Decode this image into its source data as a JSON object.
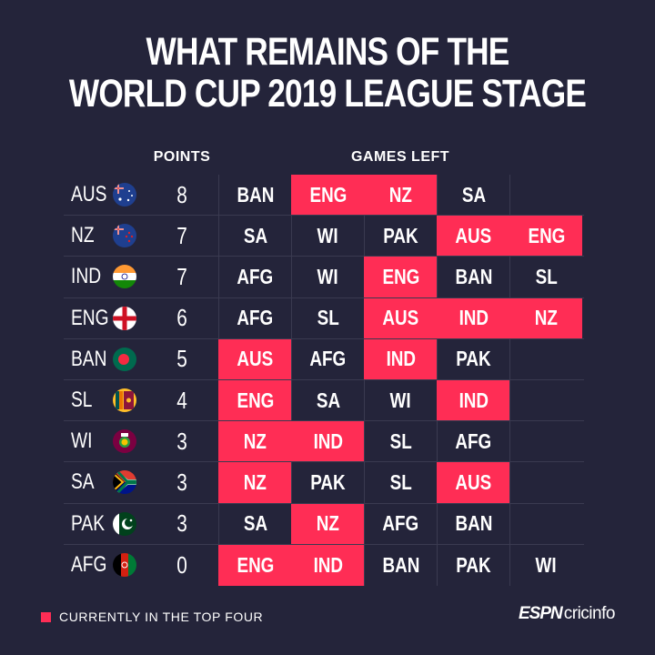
{
  "title": {
    "line1": "WHAT REMAINS OF THE",
    "line2": "WORLD CUP 2019 LEAGUE STAGE"
  },
  "headers": {
    "points": "POINTS",
    "games_left": "GAMES LEFT"
  },
  "colors": {
    "background": "#24243a",
    "highlight": "#ff2d55",
    "text": "#ffffff"
  },
  "teams": [
    {
      "team": "AUS",
      "flag": "australia-flag-icon",
      "points": "8",
      "games": [
        {
          "opp": "BAN",
          "top4": false
        },
        {
          "opp": "ENG",
          "top4": true
        },
        {
          "opp": "NZ",
          "top4": true
        },
        {
          "opp": "SA",
          "top4": false
        }
      ]
    },
    {
      "team": "NZ",
      "flag": "new-zealand-flag-icon",
      "points": "7",
      "games": [
        {
          "opp": "SA",
          "top4": false
        },
        {
          "opp": "WI",
          "top4": false
        },
        {
          "opp": "PAK",
          "top4": false
        },
        {
          "opp": "AUS",
          "top4": true
        },
        {
          "opp": "ENG",
          "top4": true
        }
      ]
    },
    {
      "team": "IND",
      "flag": "india-flag-icon",
      "points": "7",
      "games": [
        {
          "opp": "AFG",
          "top4": false
        },
        {
          "opp": "WI",
          "top4": false
        },
        {
          "opp": "ENG",
          "top4": true
        },
        {
          "opp": "BAN",
          "top4": false
        },
        {
          "opp": "SL",
          "top4": false
        }
      ]
    },
    {
      "team": "ENG",
      "flag": "england-flag-icon",
      "points": "6",
      "games": [
        {
          "opp": "AFG",
          "top4": false
        },
        {
          "opp": "SL",
          "top4": false
        },
        {
          "opp": "AUS",
          "top4": true
        },
        {
          "opp": "IND",
          "top4": true
        },
        {
          "opp": "NZ",
          "top4": true
        }
      ]
    },
    {
      "team": "BAN",
      "flag": "bangladesh-flag-icon",
      "points": "5",
      "games": [
        {
          "opp": "AUS",
          "top4": true
        },
        {
          "opp": "AFG",
          "top4": false
        },
        {
          "opp": "IND",
          "top4": true
        },
        {
          "opp": "PAK",
          "top4": false
        }
      ]
    },
    {
      "team": "SL",
      "flag": "sri-lanka-flag-icon",
      "points": "4",
      "games": [
        {
          "opp": "ENG",
          "top4": true
        },
        {
          "opp": "SA",
          "top4": false
        },
        {
          "opp": "WI",
          "top4": false
        },
        {
          "opp": "IND",
          "top4": true
        }
      ]
    },
    {
      "team": "WI",
      "flag": "west-indies-flag-icon",
      "points": "3",
      "games": [
        {
          "opp": "NZ",
          "top4": true
        },
        {
          "opp": "IND",
          "top4": true
        },
        {
          "opp": "SL",
          "top4": false
        },
        {
          "opp": "AFG",
          "top4": false
        }
      ]
    },
    {
      "team": "SA",
      "flag": "south-africa-flag-icon",
      "points": "3",
      "games": [
        {
          "opp": "NZ",
          "top4": true
        },
        {
          "opp": "PAK",
          "top4": false
        },
        {
          "opp": "SL",
          "top4": false
        },
        {
          "opp": "AUS",
          "top4": true
        }
      ]
    },
    {
      "team": "PAK",
      "flag": "pakistan-flag-icon",
      "points": "3",
      "games": [
        {
          "opp": "SA",
          "top4": false
        },
        {
          "opp": "NZ",
          "top4": true
        },
        {
          "opp": "AFG",
          "top4": false
        },
        {
          "opp": "BAN",
          "top4": false
        }
      ]
    },
    {
      "team": "AFG",
      "flag": "afghanistan-flag-icon",
      "points": "0",
      "games": [
        {
          "opp": "ENG",
          "top4": true
        },
        {
          "opp": "IND",
          "top4": true
        },
        {
          "opp": "BAN",
          "top4": false
        },
        {
          "opp": "PAK",
          "top4": false
        },
        {
          "opp": "WI",
          "top4": false
        }
      ]
    }
  ],
  "legend": {
    "label": "CURRENTLY IN THE TOP FOUR"
  },
  "brand": {
    "espn": "ESPN",
    "cricinfo": "cricinfo"
  }
}
